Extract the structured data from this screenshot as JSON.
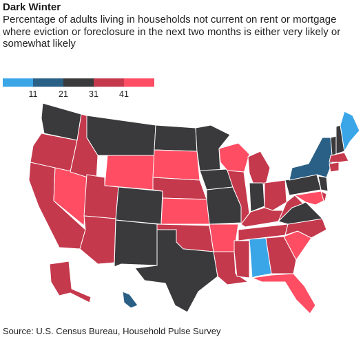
{
  "title": "Dark Winter",
  "subtitle": "Percentage of adults living in households not current on rent or mortgage where eviction or foreclosure in the next two months is either very likely or somewhat likely",
  "legend": {
    "colors": [
      "#3aa6e8",
      "#2a5f86",
      "#3a3a3c",
      "#c5394d",
      "#ff4d63"
    ],
    "ticks": [
      "11",
      "21",
      "31",
      "41"
    ]
  },
  "source": "Source: U.S. Census Bureau, Household Pulse Survey",
  "map_data": {
    "bins": [
      {
        "range": "below 11",
        "color": "#3aa6e8"
      },
      {
        "range": "11-21",
        "color": "#2a5f86"
      },
      {
        "range": "21-31",
        "color": "#3a3a3c"
      },
      {
        "range": "31-41",
        "color": "#c5394d"
      },
      {
        "range": "41 and above",
        "color": "#ff4d63"
      }
    ],
    "states": {
      "WA": 2,
      "OR": 3,
      "CA": 3,
      "NV": 4,
      "ID": 3,
      "MT": 2,
      "WY": 4,
      "UT": 3,
      "AZ": 3,
      "CO": 2,
      "NM": 2,
      "ND": 2,
      "SD": 4,
      "NE": 3,
      "KS": 4,
      "OK": 3,
      "TX": 2,
      "MN": 2,
      "IA": 2,
      "MO": 2,
      "AR": 4,
      "LA": 3,
      "WI": 4,
      "IL": 3,
      "MS": 3,
      "MI": 3,
      "IN": 2,
      "KY": 3,
      "TN": 3,
      "AL": 0,
      "OH": 3,
      "WV": 3,
      "GA": 3,
      "FL": 4,
      "SC": 4,
      "NC": 3,
      "VA": 2,
      "PA": 2,
      "NY": 1,
      "ME": 0,
      "NH": 2,
      "VT": 2,
      "MA": 3,
      "CT": 3,
      "NJ": 2,
      "DE": 3,
      "MD": 4,
      "AK": 3,
      "HI": 1
    }
  }
}
